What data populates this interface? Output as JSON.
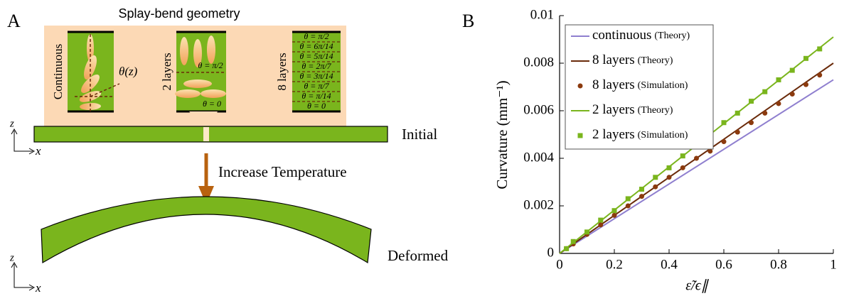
{
  "panel_a": {
    "label": "A",
    "title": "Splay-bend geometry",
    "continuous": {
      "label": "Continuous",
      "angle": "θ(z)"
    },
    "two_layers": {
      "label": "2 layers",
      "angles": [
        "θ = π/2",
        "θ = 0"
      ]
    },
    "eight_layers": {
      "label": "8 layers",
      "angles": [
        "θ = π/2",
        "θ = 6π/14",
        "θ = 5π/14",
        "θ = 2π/7",
        "θ = 3π/14",
        "θ = π/7",
        "θ = π/14",
        "θ = 0"
      ]
    },
    "initial": "Initial",
    "process": "Increase Temperature",
    "deformed": "Deformed",
    "axes": [
      {
        "z": "z",
        "x": "x"
      },
      {
        "z": "z",
        "x": "x"
      }
    ]
  },
  "chart_data": {
    "type": "line",
    "panel_label": "B",
    "xlabel": "ε̃/ϵ∥",
    "ylabel": "Curvature (mm⁻¹)",
    "xlim": [
      0,
      1
    ],
    "ylim": [
      0,
      0.01
    ],
    "xticks": [
      0,
      0.2,
      0.4,
      0.6,
      0.8,
      1
    ],
    "yticks": [
      0,
      0.002,
      0.004,
      0.006,
      0.008,
      0.01
    ],
    "legend": "upper left",
    "series": [
      {
        "name": "continuous",
        "source": "(Theory)",
        "style": "line",
        "color": "#8f7fcf",
        "x": [
          0,
          1
        ],
        "values": [
          0,
          0.0073
        ]
      },
      {
        "name": "8 layers",
        "source": "(Theory)",
        "style": "line",
        "color": "#6a2a0a",
        "x": [
          0,
          1
        ],
        "values": [
          0,
          0.008
        ]
      },
      {
        "name": "8 layers",
        "source": "(Simulation)",
        "style": "circle",
        "color": "#8b3a0e",
        "x": [
          0.025,
          0.05,
          0.1,
          0.15,
          0.2,
          0.25,
          0.3,
          0.35,
          0.4,
          0.45,
          0.5,
          0.55,
          0.6,
          0.65,
          0.7,
          0.75,
          0.8,
          0.85,
          0.9,
          0.95
        ],
        "values": [
          0.0002,
          0.0004,
          0.0008,
          0.0012,
          0.0016,
          0.002,
          0.0024,
          0.0028,
          0.0032,
          0.0036,
          0.004,
          0.0043,
          0.0047,
          0.0051,
          0.0055,
          0.0059,
          0.0063,
          0.0067,
          0.0071,
          0.0075
        ]
      },
      {
        "name": "2 layers",
        "source": "(Theory)",
        "style": "line",
        "color": "#7ab51d",
        "x": [
          0,
          1
        ],
        "values": [
          0,
          0.0091
        ]
      },
      {
        "name": "2 layers",
        "source": "(Simulation)",
        "style": "square",
        "color": "#7ab51d",
        "x": [
          0.025,
          0.05,
          0.1,
          0.15,
          0.2,
          0.25,
          0.3,
          0.35,
          0.4,
          0.45,
          0.5,
          0.55,
          0.6,
          0.65,
          0.7,
          0.75,
          0.8,
          0.85,
          0.9,
          0.95
        ],
        "values": [
          0.0002,
          0.0005,
          0.0009,
          0.0014,
          0.0018,
          0.0023,
          0.0027,
          0.0032,
          0.0036,
          0.0041,
          0.0046,
          0.005,
          0.0055,
          0.0059,
          0.0064,
          0.0068,
          0.0073,
          0.0077,
          0.0082,
          0.0086
        ]
      }
    ]
  }
}
